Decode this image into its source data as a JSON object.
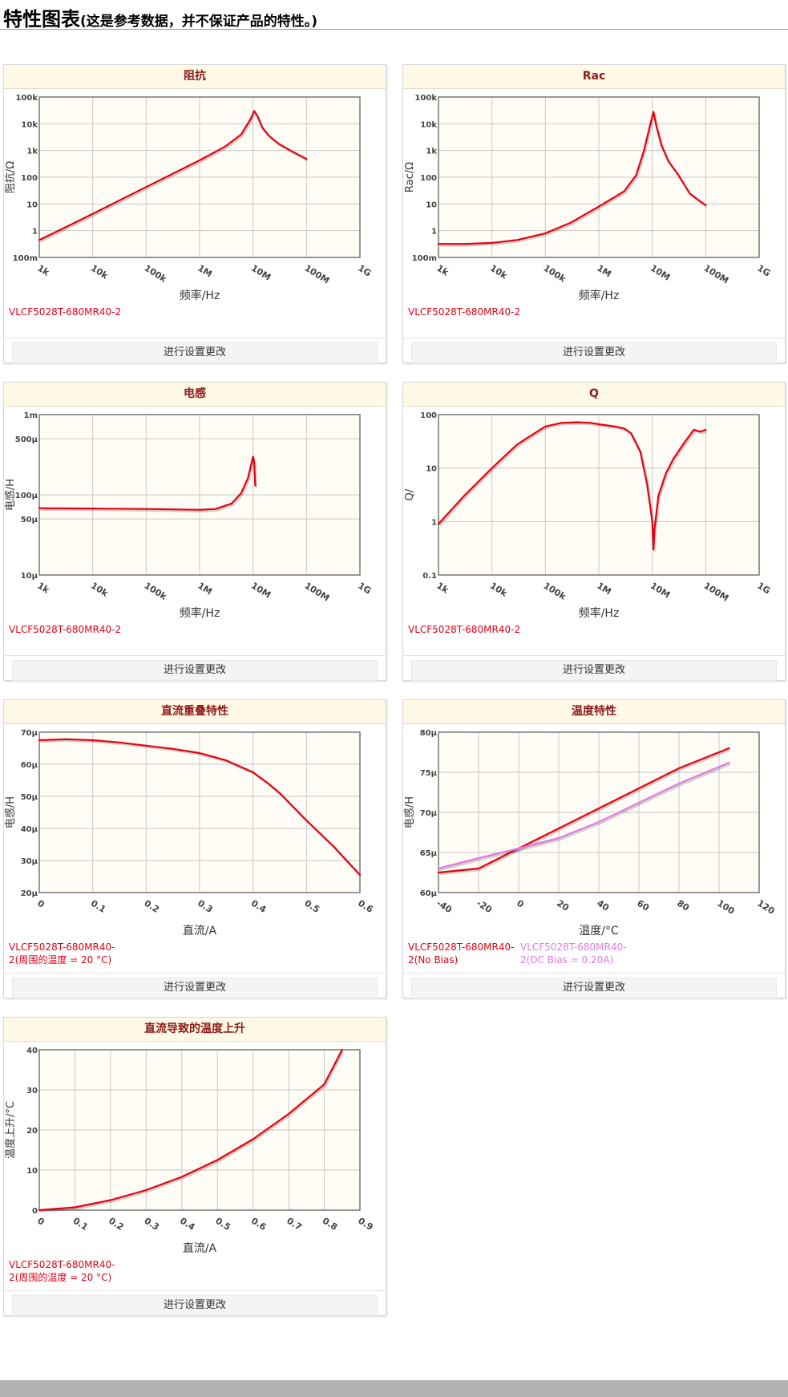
{
  "page": {
    "title": "特性图表",
    "subtitle": "(这是参考数据，并不保证产品的特性。)",
    "settings_label": "进行设置更改"
  },
  "colors": {
    "main_series": "#e60012",
    "bias_series": "#e07be0",
    "plot_bg": "#fffdf5",
    "grid": "#c8c8c8"
  },
  "chart_data": [
    {
      "id": "impedance",
      "title": "阻抗",
      "type": "line",
      "xscale": "log",
      "yscale": "log",
      "xlim": [
        1000,
        1000000000
      ],
      "ylim": [
        0.1,
        100000
      ],
      "xticks": [
        1000,
        10000,
        100000,
        1000000,
        10000000,
        100000000,
        1000000000
      ],
      "xticklabels": [
        "1k",
        "10k",
        "100k",
        "1M",
        "10M",
        "100M",
        "1G"
      ],
      "yticks": [
        0.1,
        1,
        10,
        100,
        1000,
        10000,
        100000
      ],
      "yticklabels": [
        "100m",
        "1",
        "10",
        "100",
        "1k",
        "10k",
        "100k"
      ],
      "xlabel": "频率/Hz",
      "ylabel": "阻抗/Ω",
      "series": [
        {
          "name": "VLCF5028T-680MR40-2",
          "color": "#e60012",
          "x": [
            1000,
            3000,
            10000,
            100000,
            1000000,
            3000000,
            6000000,
            9000000,
            10500000,
            12000000,
            15000000,
            20000000,
            30000000,
            50000000,
            100000000
          ],
          "y": [
            0.45,
            1.3,
            4.3,
            43,
            430,
            1400,
            4000,
            15000,
            30000,
            20000,
            7000,
            3500,
            1800,
            1000,
            480
          ]
        }
      ],
      "legend": [
        "VLCF5028T-680MR40-2"
      ]
    },
    {
      "id": "rac",
      "title": "Rac",
      "type": "line",
      "xscale": "log",
      "yscale": "log",
      "xlim": [
        1000,
        1000000000
      ],
      "ylim": [
        0.1,
        100000
      ],
      "xticks": [
        1000,
        10000,
        100000,
        1000000,
        10000000,
        100000000,
        1000000000
      ],
      "xticklabels": [
        "1k",
        "10k",
        "100k",
        "1M",
        "10M",
        "100M",
        "1G"
      ],
      "yticks": [
        0.1,
        1,
        10,
        100,
        1000,
        10000,
        100000
      ],
      "yticklabels": [
        "100m",
        "1",
        "10",
        "100",
        "1k",
        "10k",
        "100k"
      ],
      "xlabel": "频率/Hz",
      "ylabel": "Rac/Ω",
      "series": [
        {
          "name": "VLCF5028T-680MR40-2",
          "color": "#e60012",
          "x": [
            1000,
            3000,
            10000,
            30000,
            100000,
            300000,
            1000000,
            3000000,
            5000000,
            7000000,
            9000000,
            10500000,
            12000000,
            15000000,
            20000000,
            30000000,
            50000000,
            70000000,
            100000000
          ],
          "y": [
            0.32,
            0.32,
            0.35,
            0.45,
            0.8,
            2,
            8,
            30,
            120,
            1000,
            8000,
            28000,
            8000,
            1500,
            400,
            130,
            25,
            15,
            9
          ]
        }
      ],
      "legend": [
        "VLCF5028T-680MR40-2"
      ]
    },
    {
      "id": "inductance",
      "title": "电感",
      "type": "line",
      "xscale": "log",
      "yscale": "log",
      "xlim": [
        1000,
        1000000000
      ],
      "ylim": [
        1e-05,
        0.001
      ],
      "xticks": [
        1000,
        10000,
        100000,
        1000000,
        10000000,
        100000000,
        1000000000
      ],
      "xticklabels": [
        "1k",
        "10k",
        "100k",
        "1M",
        "10M",
        "100M",
        "1G"
      ],
      "yticks": [
        1e-05,
        5e-05,
        0.0001,
        0.0005,
        0.001
      ],
      "yticklabels": [
        "10µ",
        "50µ",
        "100µ",
        "500µ",
        "1m"
      ],
      "xlabel": "频率/Hz",
      "ylabel": "电感/H",
      "series": [
        {
          "name": "VLCF5028T-680MR40-2",
          "color": "#e60012",
          "x": [
            1000,
            10000,
            100000,
            1000000,
            2000000,
            4000000,
            6000000,
            8000000,
            10000000,
            10500000,
            11000000
          ],
          "y": [
            6.8e-05,
            6.75e-05,
            6.65e-05,
            6.5e-05,
            6.65e-05,
            7.8e-05,
            0.000105,
            0.00016,
            0.0003,
            0.00025,
            0.00013
          ]
        }
      ],
      "legend": [
        "VLCF5028T-680MR40-2"
      ]
    },
    {
      "id": "q",
      "title": "Q",
      "type": "line",
      "xscale": "log",
      "yscale": "log",
      "xlim": [
        1000,
        1000000000
      ],
      "ylim": [
        0.1,
        100
      ],
      "xticks": [
        1000,
        10000,
        100000,
        1000000,
        10000000,
        100000000,
        1000000000
      ],
      "xticklabels": [
        "1k",
        "10k",
        "100k",
        "1M",
        "10M",
        "100M",
        "1G"
      ],
      "yticks": [
        0.1,
        1,
        10,
        100
      ],
      "yticklabels": [
        "0.1",
        "1",
        "10",
        "100"
      ],
      "xlabel": "频率/Hz",
      "ylabel": "Q/",
      "series": [
        {
          "name": "VLCF5028T-680MR40-2",
          "color": "#e60012",
          "x": [
            1000,
            3000,
            10000,
            30000,
            100000,
            200000,
            400000,
            700000,
            1000000,
            2000000,
            3000000,
            4000000,
            6000000,
            8000000,
            10000000,
            10500000,
            11000000,
            13000000,
            18000000,
            25000000,
            40000000,
            60000000,
            80000000,
            100000000
          ],
          "y": [
            0.9,
            3,
            10,
            28,
            60,
            70,
            72,
            70,
            66,
            60,
            55,
            45,
            20,
            5,
            1,
            0.3,
            0.7,
            3,
            8,
            15,
            30,
            52,
            48,
            52
          ]
        }
      ],
      "legend": [
        "VLCF5028T-680MR40-2"
      ]
    },
    {
      "id": "dc-bias",
      "title": "直流重叠特性",
      "type": "line",
      "xscale": "linear",
      "yscale": "linear",
      "xlim": [
        0,
        0.6
      ],
      "ylim": [
        2e-05,
        7e-05
      ],
      "xticks": [
        0,
        0.1,
        0.2,
        0.3,
        0.4,
        0.5,
        0.6
      ],
      "xticklabels": [
        "0",
        "0.1",
        "0.2",
        "0.3",
        "0.4",
        "0.5",
        "0.6"
      ],
      "yticks": [
        2e-05,
        3e-05,
        4e-05,
        5e-05,
        6e-05,
        7e-05
      ],
      "yticklabels": [
        "20µ",
        "30µ",
        "40µ",
        "50µ",
        "60µ",
        "70µ"
      ],
      "xlabel": "直流/A",
      "ylabel": "电感/H",
      "series": [
        {
          "name": "VLCF5028T-680MR40-2(周围的温度 = 20 °C)",
          "color": "#e60012",
          "x": [
            0,
            0.05,
            0.1,
            0.15,
            0.2,
            0.25,
            0.3,
            0.35,
            0.4,
            0.43,
            0.45,
            0.5,
            0.55,
            0.6
          ],
          "y": [
            6.75e-05,
            6.78e-05,
            6.75e-05,
            6.68e-05,
            6.58e-05,
            6.48e-05,
            6.35e-05,
            6.12e-05,
            5.75e-05,
            5.38e-05,
            5.1e-05,
            4.25e-05,
            3.45e-05,
            2.55e-05
          ]
        }
      ],
      "legend": [
        "VLCF5028T-680MR40-2(周围的温度 = 20 °C)"
      ]
    },
    {
      "id": "temperature",
      "title": "温度特性",
      "type": "line",
      "xscale": "linear",
      "yscale": "linear",
      "xlim": [
        -40,
        120
      ],
      "ylim": [
        6e-05,
        8e-05
      ],
      "xticks": [
        -40,
        -20,
        0,
        20,
        40,
        60,
        80,
        100,
        120
      ],
      "xticklabels": [
        "-40",
        "-20",
        "0",
        "20",
        "40",
        "60",
        "80",
        "100",
        "120"
      ],
      "yticks": [
        6e-05,
        6.5e-05,
        7e-05,
        7.5e-05,
        8e-05
      ],
      "yticklabels": [
        "60µ",
        "65µ",
        "70µ",
        "75µ",
        "80µ"
      ],
      "xlabel": "温度/°C",
      "ylabel": "电感/H",
      "series": [
        {
          "name": "VLCF5028T-680MR40-2(No Bias)",
          "color": "#e60012",
          "x": [
            -40,
            -20,
            0,
            20,
            40,
            60,
            80,
            105
          ],
          "y": [
            6.25e-05,
            6.3e-05,
            6.55e-05,
            6.8e-05,
            7.05e-05,
            7.3e-05,
            7.55e-05,
            7.8e-05
          ]
        },
        {
          "name": "VLCF5028T-680MR40-2(DC Bias = 0.20A)",
          "color": "#e07be0",
          "x": [
            -40,
            -20,
            0,
            20,
            40,
            60,
            80,
            105
          ],
          "y": [
            6.3e-05,
            6.43e-05,
            6.55e-05,
            6.68e-05,
            6.88e-05,
            7.12e-05,
            7.36e-05,
            7.62e-05
          ]
        }
      ],
      "legend": [
        "VLCF5028T-680MR40-2(No Bias)",
        "VLCF5028T-680MR40-2(DC Bias = 0.20A)"
      ]
    },
    {
      "id": "temp-rise",
      "title": "直流导致的温度上升",
      "type": "line",
      "xscale": "linear",
      "yscale": "linear",
      "xlim": [
        0,
        0.9
      ],
      "ylim": [
        0,
        40
      ],
      "xticks": [
        0,
        0.1,
        0.2,
        0.3,
        0.4,
        0.5,
        0.6,
        0.7,
        0.8,
        0.9
      ],
      "xticklabels": [
        "0",
        "0.1",
        "0.2",
        "0.3",
        "0.4",
        "0.5",
        "0.6",
        "0.7",
        "0.8",
        "0.9"
      ],
      "yticks": [
        0,
        10,
        20,
        30,
        40
      ],
      "yticklabels": [
        "0",
        "10",
        "20",
        "30",
        "40"
      ],
      "xlabel": "直流/A",
      "ylabel": "温度上升/°C",
      "series": [
        {
          "name": "VLCF5028T-680MR40-2(周围的温度 = 20 °C)",
          "color": "#e60012",
          "x": [
            0,
            0.1,
            0.2,
            0.3,
            0.4,
            0.5,
            0.6,
            0.7,
            0.8,
            0.85
          ],
          "y": [
            0,
            0.7,
            2.5,
            5,
            8.3,
            12.5,
            17.7,
            24,
            31.4,
            40
          ]
        }
      ],
      "legend": [
        "VLCF5028T-680MR40-2(周围的温度 = 20 °C)"
      ]
    }
  ]
}
